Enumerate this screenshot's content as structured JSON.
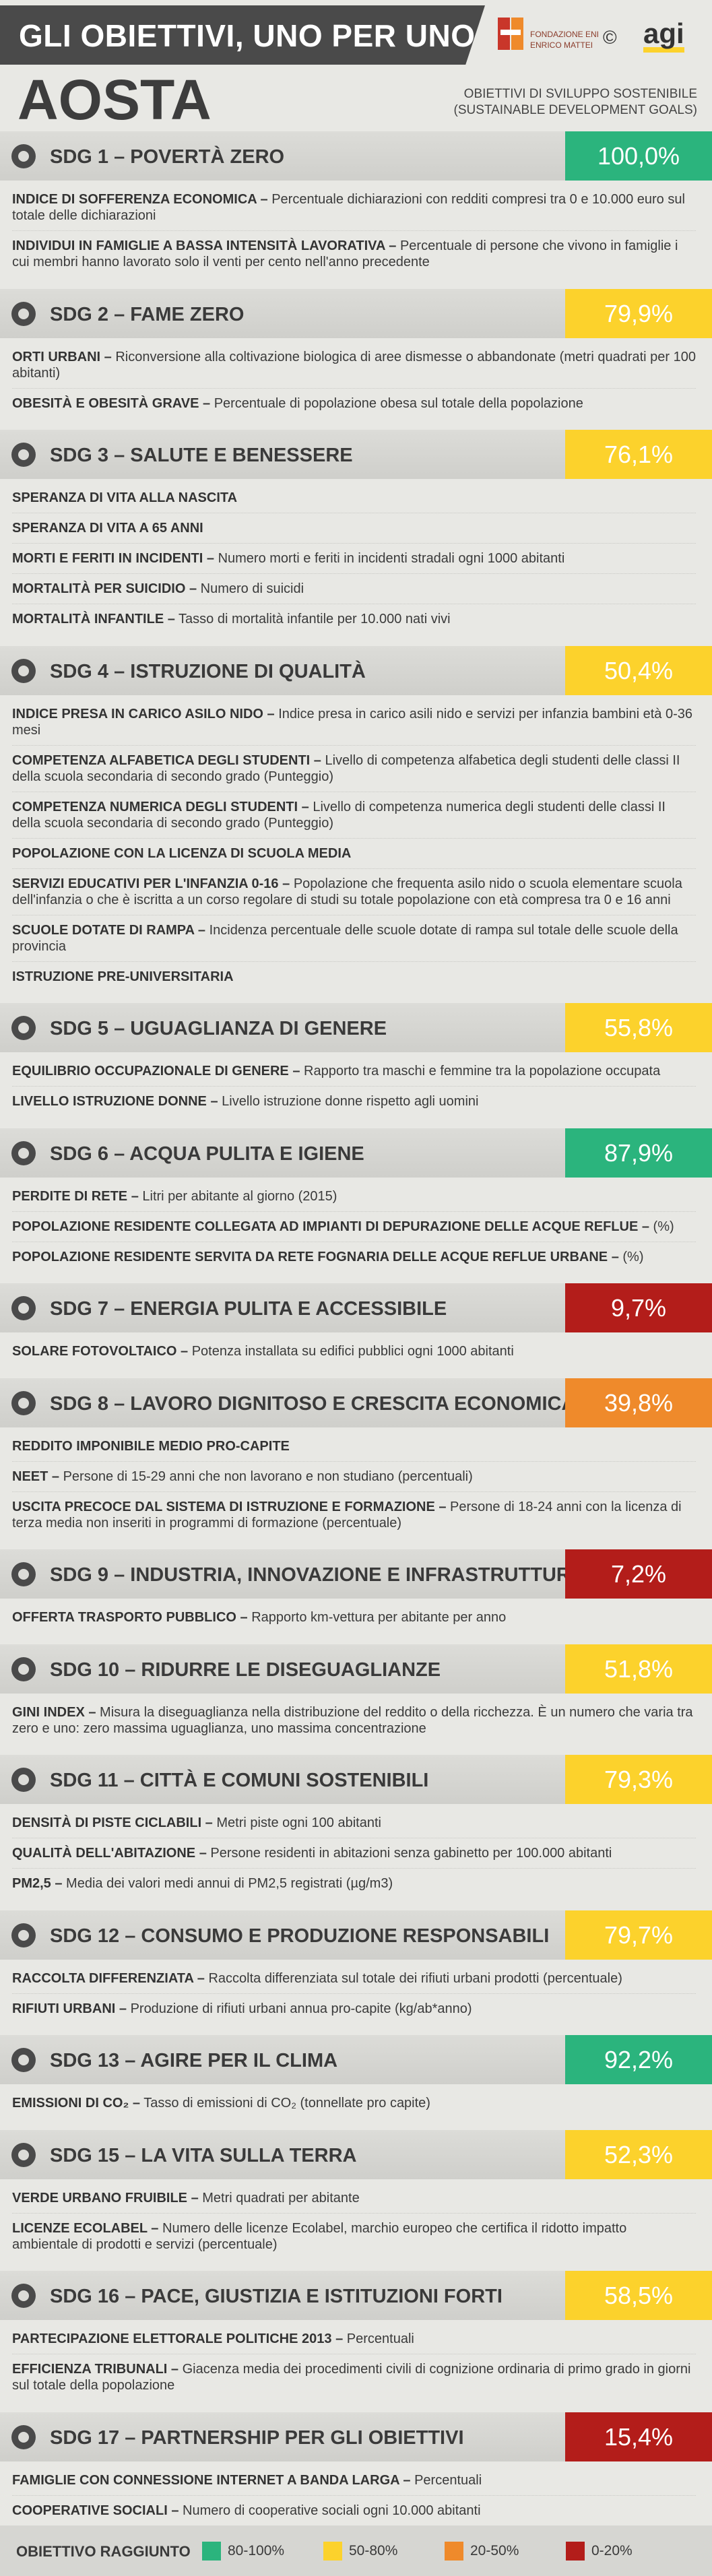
{
  "header": {
    "title": "GLI OBIETTIVI, UNO PER UNO",
    "logo_line_1": "FONDAZIONE ENI",
    "logo_line_2": "ENRICO MATTEI",
    "copyright": "©",
    "agency": "agi",
    "city": "AOSTA",
    "subtitle_1": "OBIETTIVI DI SVILUPPO SOSTENIBILE",
    "subtitle_2": "(SUSTAINABLE DEVELOPMENT GOALS)"
  },
  "sections": [
    {
      "sdg": "SDG 1",
      "title": "– POVERTÀ ZERO",
      "score": "100,0%",
      "color": "#2bb47d",
      "items": [
        {
          "name": "INDICE DI SOFFERENZA ECONOMICA –",
          "description": "Percentuale dichiarazioni con redditi compresi tra 0 e 10.000 euro sul totale delle dichiarazioni"
        },
        {
          "name": "INDIVIDUI IN FAMIGLIE A BASSA INTENSITÀ LAVORATIVA –",
          "description": "Percentuale di persone che vivono in famiglie i cui membri hanno lavorato solo il venti per cento nell'anno precedente"
        }
      ]
    },
    {
      "sdg": "SDG 2",
      "title": "– FAME ZERO",
      "score": "79,9%",
      "color": "#fcd22c",
      "items": [
        {
          "name": "ORTI URBANI –",
          "description": "Riconversione alla coltivazione biologica di aree dismesse o abbandonate (metri quadrati per 100 abitanti)"
        },
        {
          "name": "OBESITÀ E OBESITÀ GRAVE –",
          "description": "Percentuale di popolazione obesa sul totale della popolazione"
        }
      ]
    },
    {
      "sdg": "SDG 3",
      "title": "– SALUTE E BENESSERE",
      "score": "76,1%",
      "color": "#fcd22c",
      "items": [
        {
          "name": "SPERANZA DI VITA ALLA NASCITA"
        },
        {
          "name": "SPERANZA DI VITA A 65 ANNI"
        },
        {
          "name": "MORTI E FERITI IN INCIDENTI –",
          "description": "Numero morti e feriti in incidenti stradali ogni 1000 abitanti"
        },
        {
          "name": "MORTALITÀ PER SUICIDIO –",
          "description": "Numero di suicidi"
        },
        {
          "name": "MORTALITÀ INFANTILE –",
          "description": "Tasso di mortalità infantile per 10.000 nati vivi"
        }
      ]
    },
    {
      "sdg": "SDG 4",
      "title": "– ISTRUZIONE DI QUALITÀ",
      "score": "50,4%",
      "color": "#fcd22c",
      "items": [
        {
          "name": "INDICE PRESA IN CARICO ASILO NIDO –",
          "description": "Indice presa in carico asili nido e servizi per infanzia bambini età 0-36 mesi"
        },
        {
          "name": "COMPETENZA ALFABETICA DEGLI STUDENTI –",
          "description": "Livello di competenza alfabetica degli studenti delle classi II della scuola secondaria di secondo grado (Punteggio)"
        },
        {
          "name": "COMPETENZA NUMERICA DEGLI STUDENTI –",
          "description": "Livello di competenza numerica degli studenti delle classi II della scuola secondaria di secondo grado (Punteggio)"
        },
        {
          "name": "POPOLAZIONE CON LA LICENZA DI SCUOLA MEDIA"
        },
        {
          "name": "SERVIZI EDUCATIVI PER L'INFANZIA 0-16 –",
          "description": "Popolazione che frequenta asilo nido o scuola elementare scuola dell'infanzia o che è iscritta a un corso regolare di studi su totale popolazione con età compresa tra 0 e 16 anni"
        },
        {
          "name": "SCUOLE DOTATE DI RAMPA –",
          "description": "Incidenza percentuale delle scuole dotate di rampa sul totale delle scuole della provincia"
        },
        {
          "name": "ISTRUZIONE PRE-UNIVERSITARIA"
        }
      ]
    },
    {
      "sdg": "SDG 5",
      "title": "– UGUAGLIANZA DI GENERE",
      "score": "55,8%",
      "color": "#fcd22c",
      "items": [
        {
          "name": "EQUILIBRIO OCCUPAZIONALE DI GENERE –",
          "description": "Rapporto tra maschi e femmine tra la popolazione occupata"
        },
        {
          "name": "LIVELLO ISTRUZIONE DONNE –",
          "description": "Livello istruzione donne rispetto agli uomini"
        }
      ]
    },
    {
      "sdg": "SDG 6",
      "title": "– ACQUA PULITA E IGIENE",
      "score": "87,9%",
      "color": "#2bb47d",
      "items": [
        {
          "name": "PERDITE DI RETE –",
          "description": "Litri per abitante al giorno (2015)"
        },
        {
          "name": "POPOLAZIONE RESIDENTE COLLEGATA AD IMPIANTI DI DEPURAZIONE DELLE ACQUE REFLUE –",
          "description": "(%)"
        },
        {
          "name": "POPOLAZIONE RESIDENTE SERVITA DA RETE FOGNARIA DELLE ACQUE REFLUE URBANE –",
          "description": "(%)"
        }
      ]
    },
    {
      "sdg": "SDG 7",
      "title": "– ENERGIA PULITA E ACCESSIBILE",
      "score": "9,7%",
      "color": "#b31d1a",
      "items": [
        {
          "name": "SOLARE FOTOVOLTAICO –",
          "description": "Potenza installata su edifici pubblici ogni 1000 abitanti"
        }
      ]
    },
    {
      "sdg": "SDG 8",
      "title": "– LAVORO DIGNITOSO E CRESCITA ECONOMICA",
      "score": "39,8%",
      "color": "#ef8a2b",
      "items": [
        {
          "name": "REDDITO IMPONIBILE MEDIO PRO-CAPITE"
        },
        {
          "name": "NEET –",
          "description": "Persone di 15-29 anni che non lavorano e non studiano (percentuali)"
        },
        {
          "name": "USCITA PRECOCE DAL SISTEMA DI ISTRUZIONE E FORMAZIONE –",
          "description": "Persone di 18-24 anni con la licenza di terza media non inseriti in programmi di formazione (percentuale)"
        }
      ]
    },
    {
      "sdg": "SDG 9",
      "title": "– INDUSTRIA, INNOVAZIONE E INFRASTRUTTURE",
      "score": "7,2%",
      "color": "#b31d1a",
      "items": [
        {
          "name": "OFFERTA TRASPORTO PUBBLICO –",
          "description": "Rapporto km-vettura per abitante per anno"
        }
      ]
    },
    {
      "sdg": "SDG 10",
      "title": "– RIDURRE LE DISEGUAGLIANZE",
      "score": "51,8%",
      "color": "#fcd22c",
      "items": [
        {
          "name": "GINI INDEX –",
          "description": "Misura la diseguaglianza nella distribuzione del reddito o della ricchezza. È un numero che varia tra zero e uno: zero massima uguaglianza, uno massima concentrazione"
        }
      ]
    },
    {
      "sdg": "SDG 11",
      "title": "– CITTÀ E COMUNI SOSTENIBILI",
      "score": "79,3%",
      "color": "#fcd22c",
      "items": [
        {
          "name": "DENSITÀ DI PISTE CICLABILI –",
          "description": "Metri piste ogni 100 abitanti"
        },
        {
          "name": "QUALITÀ DELL'ABITAZIONE –",
          "description": "Persone residenti in abitazioni senza gabinetto per 100.000 abitanti"
        },
        {
          "name": "PM2,5 –",
          "description": "Media dei valori medi annui di PM2,5 registrati (µg/m3)"
        }
      ]
    },
    {
      "sdg": "SDG 12",
      "title": "– CONSUMO E PRODUZIONE RESPONSABILI",
      "score": "79,7%",
      "color": "#fcd22c",
      "items": [
        {
          "name": "RACCOLTA DIFFERENZIATA –",
          "description": "Raccolta differenziata sul totale dei rifiuti urbani prodotti (percentuale)"
        },
        {
          "name": "RIFIUTI URBANI –",
          "description": "Produzione di rifiuti urbani annua pro-capite (kg/ab*anno)"
        }
      ]
    },
    {
      "sdg": "SDG 13",
      "title": "– AGIRE PER IL CLIMA",
      "score": "92,2%",
      "color": "#2bb47d",
      "items": [
        {
          "name": "EMISSIONI DI CO₂ –",
          "description": "Tasso di emissioni di CO₂ (tonnellate pro capite)"
        }
      ]
    },
    {
      "sdg": "SDG 15",
      "title": "– LA VITA SULLA TERRA",
      "score": "52,3%",
      "color": "#fcd22c",
      "items": [
        {
          "name": "VERDE URBANO FRUIBILE –",
          "description": "Metri quadrati per abitante"
        },
        {
          "name": "LICENZE ECOLABEL –",
          "description": "Numero delle licenze Ecolabel, marchio europeo che certifica il ridotto impatto ambientale di prodotti e servizi (percentuale)"
        }
      ]
    },
    {
      "sdg": "SDG 16",
      "title": "– PACE, GIUSTIZIA E ISTITUZIONI FORTI",
      "score": "58,5%",
      "color": "#fcd22c",
      "items": [
        {
          "name": "PARTECIPAZIONE ELETTORALE POLITICHE 2013 –",
          "description": "Percentuali"
        },
        {
          "name": "EFFICIENZA TRIBUNALI –",
          "description": "Giacenza media dei procedimenti civili di cognizione ordinaria di primo grado in giorni sul totale della popolazione"
        }
      ]
    },
    {
      "sdg": "SDG 17",
      "title": "– PARTNERSHIP PER GLI OBIETTIVI",
      "score": "15,4%",
      "color": "#b31d1a",
      "items": [
        {
          "name": "FAMIGLIE CON CONNESSIONE INTERNET A BANDA LARGA –",
          "description": "Percentuali"
        },
        {
          "name": "COOPERATIVE SOCIALI –",
          "description": "Numero di cooperative sociali ogni 10.000 abitanti"
        }
      ]
    }
  ],
  "legend": {
    "title": "OBIETTIVO RAGGIUNTO",
    "entries": [
      {
        "label": "80-100%",
        "color": "#2bb47d"
      },
      {
        "label": "50-80%",
        "color": "#fcd22c"
      },
      {
        "label": "20-50%",
        "color": "#ef8a2b"
      },
      {
        "label": "0-20%",
        "color": "#b31d1a"
      }
    ]
  }
}
